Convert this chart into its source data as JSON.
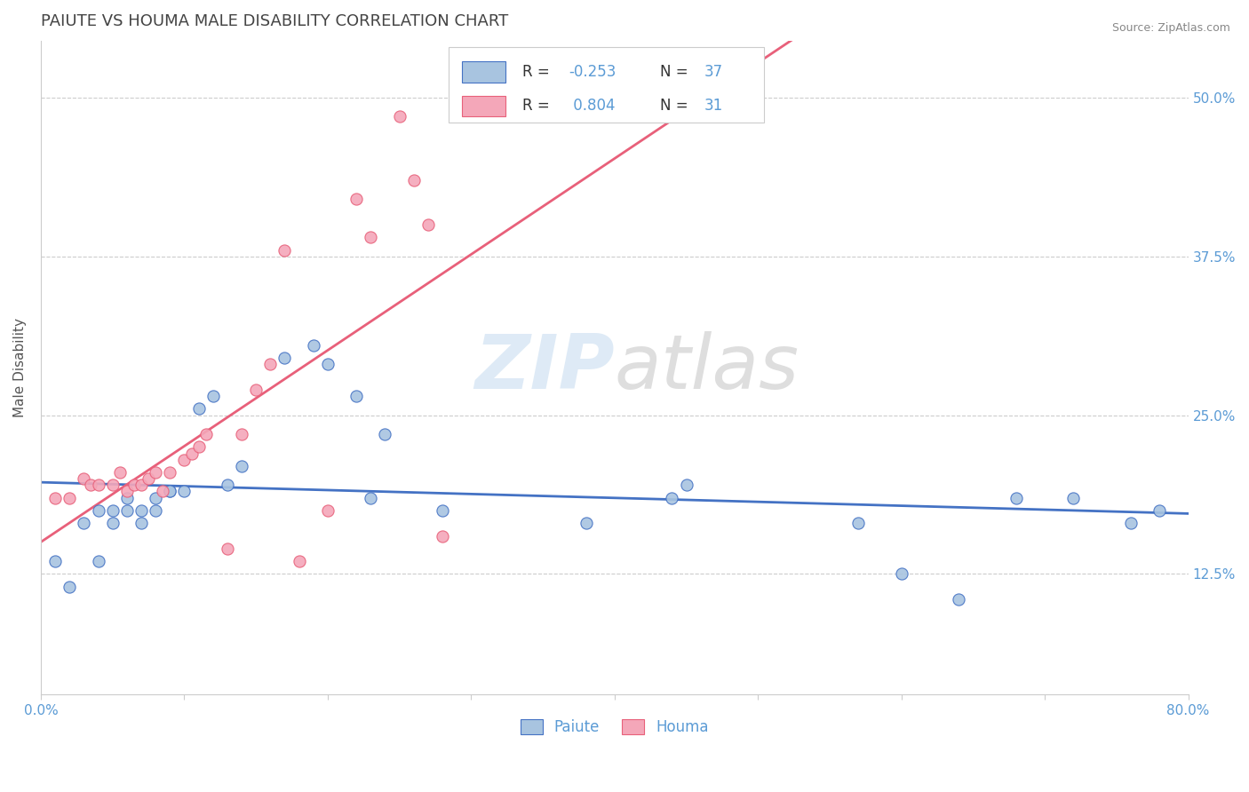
{
  "title": "PAIUTE VS HOUMA MALE DISABILITY CORRELATION CHART",
  "source": "Source: ZipAtlas.com",
  "ylabel": "Male Disability",
  "ytick_labels": [
    "12.5%",
    "25.0%",
    "37.5%",
    "50.0%"
  ],
  "ytick_values": [
    0.125,
    0.25,
    0.375,
    0.5
  ],
  "xmin": 0.0,
  "xmax": 0.8,
  "ymin": 0.03,
  "ymax": 0.545,
  "paiute_color": "#a8c4e0",
  "houma_color": "#f4a7b9",
  "paiute_line_color": "#4472c4",
  "houma_line_color": "#e8607a",
  "paiute_x": [
    0.01,
    0.02,
    0.03,
    0.04,
    0.04,
    0.05,
    0.05,
    0.06,
    0.06,
    0.07,
    0.07,
    0.08,
    0.08,
    0.09,
    0.09,
    0.1,
    0.11,
    0.12,
    0.13,
    0.14,
    0.17,
    0.19,
    0.2,
    0.22,
    0.23,
    0.24,
    0.28,
    0.38,
    0.44,
    0.45,
    0.57,
    0.6,
    0.64,
    0.68,
    0.72,
    0.76,
    0.78
  ],
  "paiute_y": [
    0.135,
    0.115,
    0.165,
    0.135,
    0.175,
    0.175,
    0.165,
    0.175,
    0.185,
    0.165,
    0.175,
    0.175,
    0.185,
    0.19,
    0.19,
    0.19,
    0.255,
    0.265,
    0.195,
    0.21,
    0.295,
    0.305,
    0.29,
    0.265,
    0.185,
    0.235,
    0.175,
    0.165,
    0.185,
    0.195,
    0.165,
    0.125,
    0.105,
    0.185,
    0.185,
    0.165,
    0.175
  ],
  "houma_x": [
    0.01,
    0.02,
    0.03,
    0.035,
    0.04,
    0.05,
    0.055,
    0.06,
    0.065,
    0.07,
    0.075,
    0.08,
    0.085,
    0.09,
    0.1,
    0.105,
    0.11,
    0.115,
    0.13,
    0.14,
    0.15,
    0.16,
    0.17,
    0.18,
    0.2,
    0.22,
    0.23,
    0.25,
    0.26,
    0.27,
    0.28
  ],
  "houma_y": [
    0.185,
    0.185,
    0.2,
    0.195,
    0.195,
    0.195,
    0.205,
    0.19,
    0.195,
    0.195,
    0.2,
    0.205,
    0.19,
    0.205,
    0.215,
    0.22,
    0.225,
    0.235,
    0.145,
    0.235,
    0.27,
    0.29,
    0.38,
    0.135,
    0.175,
    0.42,
    0.39,
    0.485,
    0.435,
    0.4,
    0.155
  ]
}
